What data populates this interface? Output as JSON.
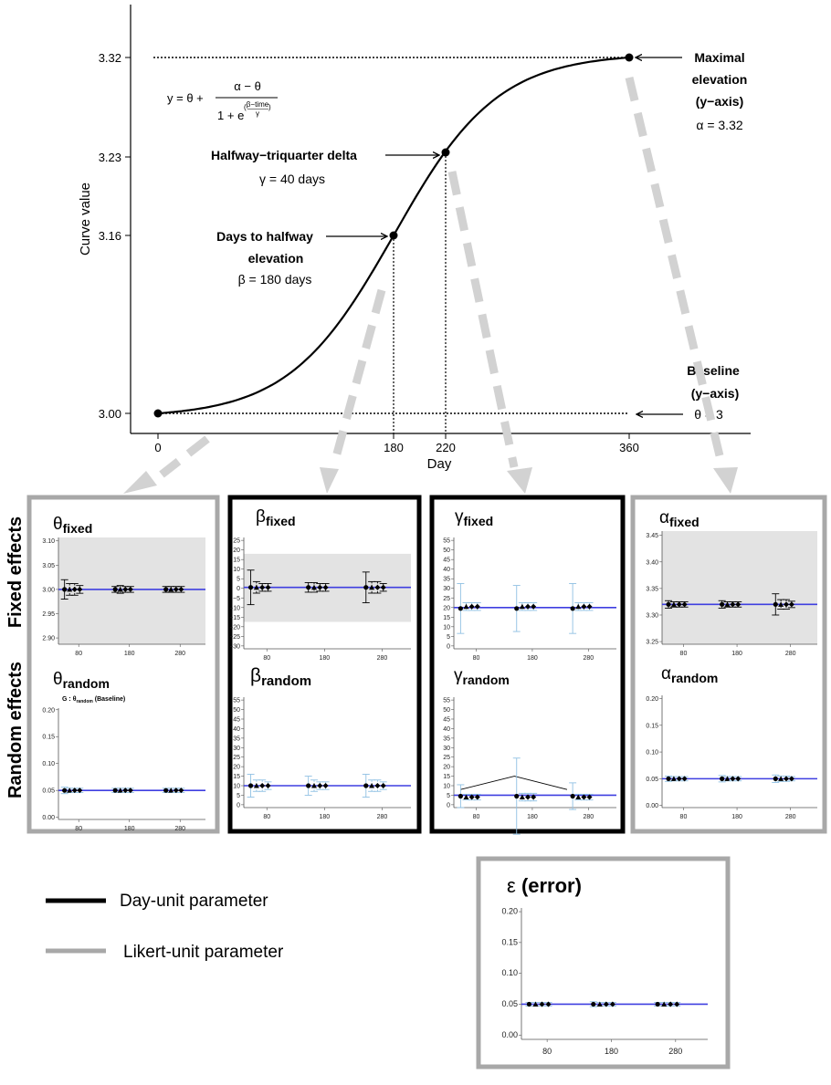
{
  "main_plot": {
    "ylabel": "Curve value",
    "xlabel": "Day",
    "y_ticks": [
      "3.00",
      "3.16",
      "3.23",
      "3.32"
    ],
    "x_ticks": [
      "0",
      "180",
      "220",
      "360"
    ],
    "formula": {
      "y": "y",
      "theta": "θ",
      "alpha": "α",
      "minus": "−",
      "one": "1",
      "e": "e",
      "exponent": "β−time",
      "gamma": "γ"
    },
    "annotations": {
      "maximal": {
        "lines": [
          "Maximal",
          "elevation",
          "(y−axis)"
        ],
        "value": "α = 3.32"
      },
      "halfway_triquarter": {
        "lines": [
          "Halfway−triquarter delta"
        ],
        "value": "γ = 40 days"
      },
      "days_to_halfway": {
        "lines": [
          "Days to halfway",
          "elevation"
        ],
        "value": "β = 180 days"
      },
      "baseline": {
        "lines": [
          "Baseline",
          "(y−axis)"
        ],
        "value": "θ = 3"
      }
    }
  },
  "chart_data": {
    "type": "line",
    "xlabel": "Day",
    "ylabel": "Curve value",
    "formula": "y = θ + (α − θ) / (1 + e^((β − time)/γ))",
    "parameters": {
      "theta": 3,
      "alpha": 3.32,
      "beta": 180,
      "gamma": 40
    },
    "x_ticks": [
      0,
      180,
      220,
      360
    ],
    "y_ticks": [
      3.0,
      3.16,
      3.23,
      3.32
    ],
    "key_points": [
      {
        "x": 0,
        "y": 3.0
      },
      {
        "x": 180,
        "y": 3.16
      },
      {
        "x": 220,
        "y": 3.23
      },
      {
        "x": 360,
        "y": 3.32
      }
    ]
  },
  "row_labels": {
    "fixed": "Fixed effects",
    "random": "Random effects"
  },
  "legend": {
    "day_unit": {
      "label": "Day-unit parameter",
      "color": "#000000"
    },
    "likert_unit": {
      "label": "Likert-unit parameter",
      "color": "#a8a8a8"
    }
  },
  "colors": {
    "true_value_line": "#3f3fe0",
    "error_bar_blue": "#8fc0e3",
    "gray_frame": "#a8a8a8",
    "panel_bg": "#e3e3e3",
    "arrow": "#d2d2d2"
  },
  "x_ticks_small": [
    "80",
    "180",
    "280"
  ],
  "panels": [
    {
      "fixed": {
        "symbol": "θ",
        "sub": "fixed",
        "ticks": [
          "3.10",
          "3.05",
          "3.00",
          "2.95",
          "2.90"
        ]
      },
      "random": {
        "symbol": "θ",
        "sub": "random",
        "ticks": [
          "0.20",
          "0.15",
          "0.10",
          "0.05",
          "0.00"
        ],
        "note": {
          "g": "G :",
          "sym": "θ",
          "sub": "random",
          "suffix": "(Baseline)"
        }
      }
    },
    {
      "fixed": {
        "symbol": "β",
        "sub": "fixed",
        "ticks": [
          "25",
          "20",
          "15",
          "10",
          "5",
          "0",
          "−5",
          "−10",
          "−15",
          "−20",
          "−25",
          "−30"
        ]
      },
      "random": {
        "symbol": "β",
        "sub": "random",
        "ticks": [
          "55",
          "50",
          "45",
          "40",
          "35",
          "30",
          "25",
          "20",
          "15",
          "10",
          "5",
          "0"
        ]
      }
    },
    {
      "fixed": {
        "symbol": "γ",
        "sub": "fixed",
        "ticks": [
          "55",
          "50",
          "45",
          "40",
          "35",
          "30",
          "25",
          "20",
          "15",
          "10",
          "5",
          "0"
        ]
      },
      "random": {
        "symbol": "γ",
        "sub": "random",
        "ticks": [
          "55",
          "50",
          "45",
          "40",
          "35",
          "30",
          "25",
          "20",
          "15",
          "10",
          "5",
          "0"
        ]
      }
    },
    {
      "fixed": {
        "symbol": "α",
        "sub": "fixed",
        "ticks": [
          "3.45",
          "3.40",
          "3.35",
          "3.30",
          "3.25"
        ]
      },
      "random": {
        "symbol": "α",
        "sub": "random",
        "ticks": [
          "0.20",
          "0.15",
          "0.10",
          "0.05",
          "0.00"
        ]
      }
    }
  ],
  "error_panel": {
    "symbol": "ε",
    "label": "(error)",
    "ticks": [
      "0.20",
      "0.15",
      "0.10",
      "0.05",
      "0.00"
    ]
  }
}
